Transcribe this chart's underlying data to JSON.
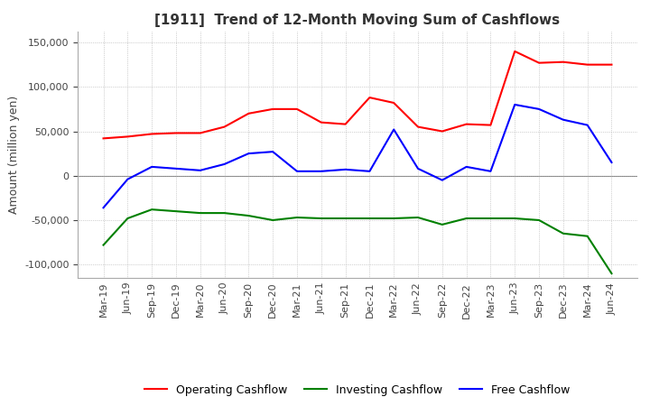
{
  "title": "[1911]  Trend of 12-Month Moving Sum of Cashflows",
  "ylabel": "Amount (million yen)",
  "ylim": [
    -115000,
    162000
  ],
  "yticks": [
    -100000,
    -50000,
    0,
    50000,
    100000,
    150000
  ],
  "x_labels": [
    "Mar-19",
    "Jun-19",
    "Sep-19",
    "Dec-19",
    "Mar-20",
    "Jun-20",
    "Sep-20",
    "Dec-20",
    "Mar-21",
    "Jun-21",
    "Sep-21",
    "Dec-21",
    "Mar-22",
    "Jun-22",
    "Sep-22",
    "Dec-22",
    "Mar-23",
    "Jun-23",
    "Sep-23",
    "Dec-23",
    "Mar-24",
    "Jun-24"
  ],
  "operating": [
    42000,
    44000,
    47000,
    48000,
    48000,
    55000,
    70000,
    75000,
    75000,
    60000,
    58000,
    88000,
    82000,
    55000,
    50000,
    58000,
    57000,
    140000,
    127000,
    128000,
    125000,
    125000
  ],
  "investing": [
    -78000,
    -48000,
    -38000,
    -40000,
    -42000,
    -42000,
    -45000,
    -50000,
    -47000,
    -48000,
    -48000,
    -48000,
    -48000,
    -47000,
    -55000,
    -48000,
    -48000,
    -48000,
    -50000,
    -65000,
    -68000,
    -110000
  ],
  "free": [
    -36000,
    -4000,
    10000,
    8000,
    6000,
    13000,
    25000,
    27000,
    5000,
    5000,
    7000,
    5000,
    52000,
    8000,
    -5000,
    10000,
    5000,
    80000,
    75000,
    63000,
    57000,
    15000
  ],
  "operating_color": "#ff0000",
  "investing_color": "#008000",
  "free_color": "#0000ff",
  "background_color": "#ffffff",
  "title_fontsize": 11,
  "label_fontsize": 9,
  "tick_fontsize": 8,
  "legend_fontsize": 9
}
